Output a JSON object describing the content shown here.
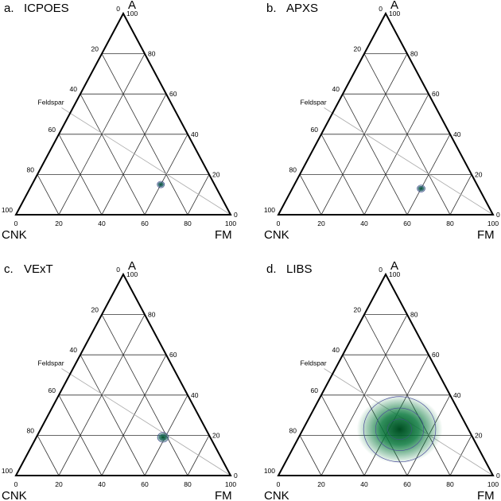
{
  "chart_data": [
    {
      "type": "ternary-density",
      "panel_label": "a.",
      "title": "ICPOES",
      "axes": {
        "top": "A",
        "left": "CNK",
        "right": "FM"
      },
      "ticks": [
        0,
        20,
        40,
        60,
        80,
        100
      ],
      "grid": true,
      "reference_line": {
        "label": "Feldspar",
        "from": {
          "A": 50,
          "CNK": 50,
          "FM": 0
        },
        "to": {
          "A": 0,
          "CNK": 0,
          "FM": 100
        }
      },
      "density_center": {
        "A": 15,
        "CNK": 25,
        "FM": 60
      },
      "density_spread": 1.2,
      "colors": {
        "fill": "#0a7a3e",
        "contour": "#4a4a9a"
      }
    },
    {
      "type": "ternary-density",
      "panel_label": "b.",
      "title": "APXS",
      "axes": {
        "top": "A",
        "left": "CNK",
        "right": "FM"
      },
      "ticks": [
        0,
        20,
        40,
        60,
        80,
        100
      ],
      "grid": true,
      "reference_line": {
        "label": "Feldspar",
        "from": {
          "A": 50,
          "CNK": 50,
          "FM": 0
        },
        "to": {
          "A": 0,
          "CNK": 0,
          "FM": 100
        }
      },
      "density_center": {
        "A": 13,
        "CNK": 27,
        "FM": 60
      },
      "density_spread": 1.3,
      "colors": {
        "fill": "#0a7a3e",
        "contour": "#4a4a9a"
      }
    },
    {
      "type": "ternary-density",
      "panel_label": "c.",
      "title": "VExT",
      "axes": {
        "top": "A",
        "left": "CNK",
        "right": "FM"
      },
      "ticks": [
        0,
        20,
        40,
        60,
        80,
        100
      ],
      "grid": true,
      "reference_line": {
        "label": "Feldspar",
        "from": {
          "A": 50,
          "CNK": 50,
          "FM": 0
        },
        "to": {
          "A": 0,
          "CNK": 0,
          "FM": 100
        }
      },
      "density_center": {
        "A": 19,
        "CNK": 22,
        "FM": 59
      },
      "density_spread": 1.8,
      "colors": {
        "fill": "#0a7a3e",
        "contour": "#4a4a9a"
      }
    },
    {
      "type": "ternary-density",
      "panel_label": "d.",
      "title": "LIBS",
      "axes": {
        "top": "A",
        "left": "CNK",
        "right": "FM"
      },
      "ticks": [
        0,
        20,
        40,
        60,
        80,
        100
      ],
      "grid": true,
      "reference_line": {
        "label": "Feldspar",
        "from": {
          "A": 50,
          "CNK": 50,
          "FM": 0
        },
        "to": {
          "A": 0,
          "CNK": 0,
          "FM": 100
        }
      },
      "density_center": {
        "A": 23,
        "CNK": 32,
        "FM": 45
      },
      "density_spread": 12,
      "colors": {
        "fill": "#0a7a3e",
        "contour": "#4a4a9a"
      }
    }
  ]
}
